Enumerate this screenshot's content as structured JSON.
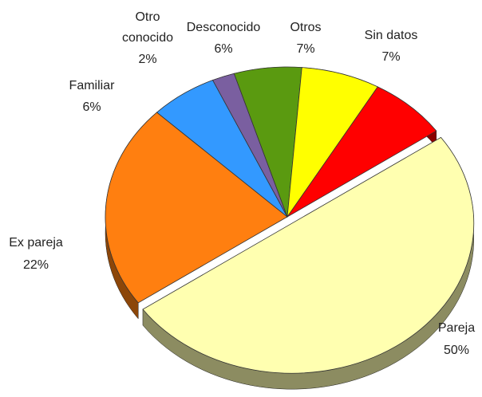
{
  "chart_data": {
    "type": "pie",
    "categories": [
      "Pareja",
      "Ex pareja",
      "Familiar",
      "Otro conocido",
      "Desconocido",
      "Otros",
      "Sin datos"
    ],
    "values": [
      50,
      22,
      6,
      2,
      6,
      7,
      7
    ],
    "value_labels": [
      "50%",
      "22%",
      "6%",
      "2%",
      "6%",
      "7%",
      "7%"
    ],
    "colors": [
      "#ffffb0",
      "#ff7f10",
      "#3399ff",
      "#7a5fa0",
      "#5a9a10",
      "#ffff00",
      "#ff0000"
    ]
  }
}
